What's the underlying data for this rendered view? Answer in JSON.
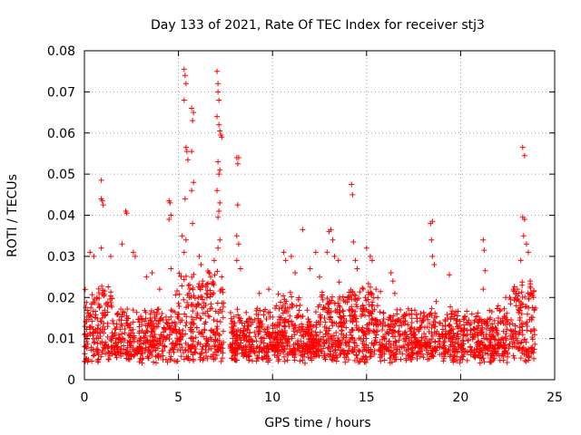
{
  "chart_data": {
    "type": "scatter",
    "title": "Day 133 of 2021, Rate Of TEC Index for receiver stj3",
    "xlabel": "GPS time / hours",
    "ylabel": "ROTI / TECUs",
    "xlim": [
      0,
      25
    ],
    "ylim": [
      0,
      0.08
    ],
    "xticks": [
      0,
      5,
      10,
      15,
      20,
      25
    ],
    "yticks": [
      0,
      0.01,
      0.02,
      0.03,
      0.04,
      0.05,
      0.06,
      0.07,
      0.08
    ],
    "xtick_labels": [
      "0",
      "5",
      "10",
      "15",
      "20",
      "25"
    ],
    "ytick_labels": [
      "0",
      "0.01",
      "0.02",
      "0.03",
      "0.04",
      "0.05",
      "0.06",
      "0.07",
      "0.08"
    ],
    "grid": true,
    "marker": "+",
    "color": "#ff0000",
    "series": [
      {
        "name": "ROTI",
        "points": [
          [
            0.9,
            0.0485
          ],
          [
            0.95,
            0.0435
          ],
          [
            1.0,
            0.0425
          ],
          [
            0.9,
            0.044
          ],
          [
            0.3,
            0.031
          ],
          [
            0.5,
            0.03
          ],
          [
            0.9,
            0.032
          ],
          [
            1.4,
            0.03
          ],
          [
            2.2,
            0.041
          ],
          [
            2.25,
            0.0405
          ],
          [
            2.0,
            0.033
          ],
          [
            2.6,
            0.031
          ],
          [
            2.7,
            0.03
          ],
          [
            3.3,
            0.025
          ],
          [
            3.6,
            0.026
          ],
          [
            4.0,
            0.022
          ],
          [
            4.5,
            0.0435
          ],
          [
            4.55,
            0.043
          ],
          [
            4.6,
            0.04
          ],
          [
            4.5,
            0.039
          ],
          [
            4.6,
            0.027
          ],
          [
            5.3,
            0.0755
          ],
          [
            5.35,
            0.074
          ],
          [
            5.4,
            0.072
          ],
          [
            5.3,
            0.068
          ],
          [
            5.45,
            0.0555
          ],
          [
            5.4,
            0.0565
          ],
          [
            5.5,
            0.0535
          ],
          [
            5.35,
            0.044
          ],
          [
            5.2,
            0.035
          ],
          [
            5.4,
            0.034
          ],
          [
            5.3,
            0.031
          ],
          [
            5.7,
            0.066
          ],
          [
            5.8,
            0.065
          ],
          [
            5.75,
            0.063
          ],
          [
            5.7,
            0.0555
          ],
          [
            5.8,
            0.048
          ],
          [
            5.7,
            0.046
          ],
          [
            5.75,
            0.038
          ],
          [
            6.1,
            0.03
          ],
          [
            6.2,
            0.028
          ],
          [
            7.05,
            0.075
          ],
          [
            7.1,
            0.072
          ],
          [
            7.1,
            0.07
          ],
          [
            7.15,
            0.068
          ],
          [
            7.05,
            0.064
          ],
          [
            7.15,
            0.062
          ],
          [
            7.2,
            0.0605
          ],
          [
            7.3,
            0.059
          ],
          [
            7.25,
            0.0595
          ],
          [
            7.1,
            0.053
          ],
          [
            7.2,
            0.051
          ],
          [
            7.15,
            0.05
          ],
          [
            7.05,
            0.046
          ],
          [
            7.2,
            0.043
          ],
          [
            7.15,
            0.041
          ],
          [
            7.1,
            0.0395
          ],
          [
            7.2,
            0.034
          ],
          [
            7.1,
            0.032
          ],
          [
            6.9,
            0.029
          ],
          [
            7.3,
            0.025
          ],
          [
            8.1,
            0.054
          ],
          [
            8.15,
            0.0525
          ],
          [
            8.2,
            0.054
          ],
          [
            8.15,
            0.0425
          ],
          [
            8.1,
            0.035
          ],
          [
            8.2,
            0.033
          ],
          [
            8.1,
            0.029
          ],
          [
            8.3,
            0.027
          ],
          [
            9.3,
            0.021
          ],
          [
            9.8,
            0.022
          ],
          [
            10.2,
            0.018
          ],
          [
            10.6,
            0.031
          ],
          [
            10.7,
            0.029
          ],
          [
            11.0,
            0.03
          ],
          [
            11.2,
            0.026
          ],
          [
            11.6,
            0.0365
          ],
          [
            12.0,
            0.027
          ],
          [
            12.3,
            0.031
          ],
          [
            12.5,
            0.025
          ],
          [
            12.9,
            0.031
          ],
          [
            13.0,
            0.036
          ],
          [
            13.1,
            0.0365
          ],
          [
            13.2,
            0.034
          ],
          [
            13.3,
            0.03
          ],
          [
            13.5,
            0.029
          ],
          [
            14.2,
            0.0475
          ],
          [
            14.25,
            0.045
          ],
          [
            14.3,
            0.0335
          ],
          [
            14.4,
            0.029
          ],
          [
            14.5,
            0.027
          ],
          [
            15.0,
            0.032
          ],
          [
            15.2,
            0.03
          ],
          [
            15.3,
            0.029
          ],
          [
            15.5,
            0.022
          ],
          [
            16.3,
            0.026
          ],
          [
            16.4,
            0.024
          ],
          [
            16.5,
            0.021
          ],
          [
            16.8,
            0.017
          ],
          [
            17.4,
            0.016
          ],
          [
            18.0,
            0.015
          ],
          [
            18.4,
            0.038
          ],
          [
            18.5,
            0.0385
          ],
          [
            18.45,
            0.034
          ],
          [
            18.5,
            0.03
          ],
          [
            18.6,
            0.028
          ],
          [
            18.7,
            0.019
          ],
          [
            19.4,
            0.0255
          ],
          [
            19.5,
            0.016
          ],
          [
            20.2,
            0.015
          ],
          [
            20.6,
            0.016
          ],
          [
            21.2,
            0.034
          ],
          [
            21.25,
            0.0315
          ],
          [
            21.3,
            0.0265
          ],
          [
            21.2,
            0.022
          ],
          [
            22.0,
            0.018
          ],
          [
            22.4,
            0.02
          ],
          [
            22.8,
            0.022
          ],
          [
            23.3,
            0.0565
          ],
          [
            23.4,
            0.0545
          ],
          [
            23.3,
            0.0395
          ],
          [
            23.4,
            0.039
          ],
          [
            23.35,
            0.035
          ],
          [
            23.5,
            0.033
          ],
          [
            23.6,
            0.031
          ],
          [
            23.2,
            0.029
          ],
          [
            23.7,
            0.024
          ]
        ]
      }
    ]
  }
}
